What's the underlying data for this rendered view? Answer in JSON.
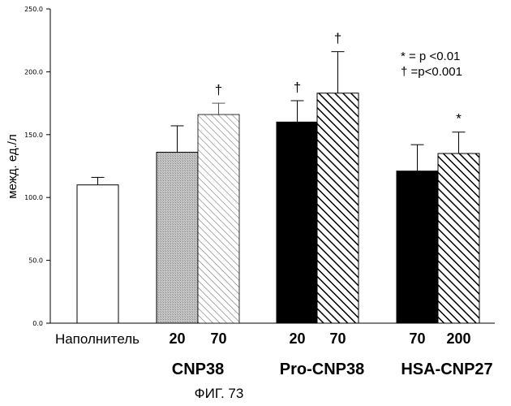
{
  "chart_data": {
    "type": "bar",
    "ylabel": "межд. ед./л",
    "ylim": [
      0,
      250
    ],
    "yticks": [
      0,
      50,
      100,
      150,
      200,
      250
    ],
    "ytick_labels": [
      "0.0",
      "50.0",
      "100.0",
      "150.0",
      "200.0",
      "250.0"
    ],
    "bars": [
      {
        "label": "Наполнитель",
        "group": "",
        "value": 110,
        "error": 6,
        "marker": "",
        "fill": "white"
      },
      {
        "label": "20",
        "group": "CNP38",
        "value": 136,
        "error": 21,
        "marker": "",
        "fill": "gray"
      },
      {
        "label": "70",
        "group": "CNP38",
        "value": 166,
        "error": 9,
        "marker": "†",
        "fill": "hatch-light"
      },
      {
        "label": "20",
        "group": "Pro-CNP38",
        "value": 160,
        "error": 17,
        "marker": "†",
        "fill": "black"
      },
      {
        "label": "70",
        "group": "Pro-CNP38",
        "value": 183,
        "error": 33,
        "marker": "†",
        "fill": "hatch-dark"
      },
      {
        "label": "70",
        "group": "HSA-CNP27",
        "value": 121,
        "error": 21,
        "marker": "",
        "fill": "black"
      },
      {
        "label": "200",
        "group": "HSA-CNP27",
        "value": 135,
        "error": 17,
        "marker": "*",
        "fill": "hatch-dark"
      }
    ],
    "groups": [
      "CNP38",
      "Pro-CNP38",
      "HSA-CNP27"
    ],
    "legend": [
      "* = p <0.01",
      "† =p<0.001"
    ],
    "legend_position": "top-right"
  },
  "figure_caption": "ФИГ. 73"
}
